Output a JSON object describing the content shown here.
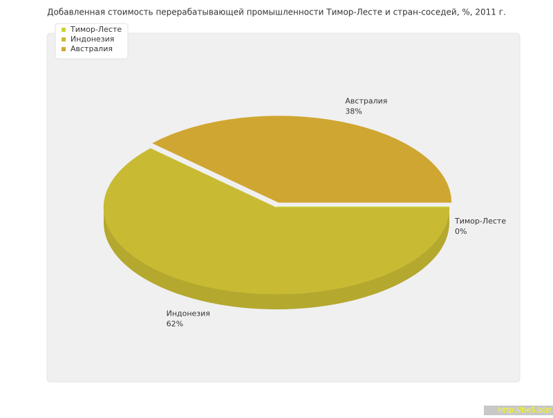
{
  "chart_data": {
    "type": "pie",
    "title": "Добавленная стоимость перерабатывающей промышленности Тимор-Лесте и стран-соседей, %, 2011 г.",
    "categories": [
      "Тимор-Лесте",
      "Индонезия",
      "Австралия"
    ],
    "values": [
      0,
      62,
      38
    ],
    "value_labels": [
      "0%",
      "62%",
      "38%"
    ],
    "colors": [
      "#c9d332",
      "#c8bb33",
      "#d0a632"
    ],
    "legend": "top-left",
    "watermark": "http://be5.biz/"
  }
}
